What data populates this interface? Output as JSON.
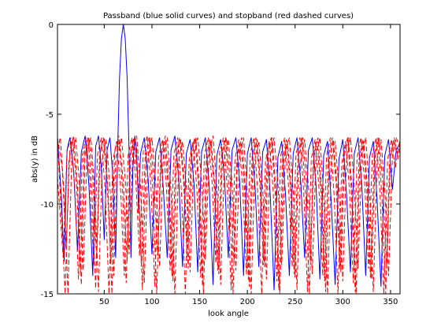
{
  "chart_data": {
    "type": "line",
    "title": "Passband (blue solid curves) and stopband (red dashed curves)",
    "xlabel": "look angle",
    "ylabel": "abs(y) in dB",
    "xlim": [
      1,
      360
    ],
    "ylim": [
      -15,
      0
    ],
    "xticks": [
      50,
      100,
      150,
      200,
      250,
      300,
      350
    ],
    "yticks": [
      0,
      -5,
      -10,
      -15
    ],
    "grid": false,
    "legend": "none",
    "series": [
      {
        "style": "solid",
        "color": "#0000ff",
        "x": [
          1,
          5,
          8,
          11,
          14,
          18,
          22,
          26,
          30,
          34,
          38,
          41,
          44,
          47,
          50,
          53,
          56,
          59,
          62,
          64,
          66,
          68,
          70,
          72,
          74,
          76,
          78,
          80,
          82,
          84,
          86,
          88,
          92,
          96,
          100,
          104,
          108,
          112,
          116,
          120,
          124,
          128,
          132,
          136,
          140,
          144,
          148,
          152,
          156,
          160,
          164,
          168,
          172,
          176,
          180,
          184,
          188,
          192,
          196,
          200,
          204,
          208,
          212,
          216,
          220,
          224,
          228,
          232,
          236,
          240,
          244,
          248,
          252,
          256,
          260,
          264,
          268,
          272,
          276,
          280,
          284,
          288,
          292,
          296,
          300,
          304,
          308,
          312,
          316,
          320,
          324,
          328,
          332,
          336,
          340,
          344,
          348,
          352,
          356,
          360
        ],
        "y": [
          -6.3,
          -9.5,
          -13.2,
          -7.0,
          -6.3,
          -8.2,
          -12.6,
          -7.1,
          -6.2,
          -9.0,
          -14.0,
          -6.8,
          -6.2,
          -8.0,
          -12.0,
          -7.0,
          -6.3,
          -8.5,
          -13.0,
          -7.0,
          -3.0,
          -0.8,
          0.0,
          -0.8,
          -3.0,
          -7.0,
          -13.0,
          -8.0,
          -6.2,
          -7.0,
          -10.5,
          -7.2,
          -6.3,
          -8.6,
          -12.8,
          -7.1,
          -6.3,
          -9.2,
          -13.0,
          -7.0,
          -6.2,
          -8.5,
          -13.5,
          -7.2,
          -6.4,
          -8.8,
          -13.8,
          -7.1,
          -6.3,
          -9.0,
          -14.5,
          -7.3,
          -6.4,
          -8.5,
          -13.0,
          -7.0,
          -6.3,
          -8.8,
          -14.0,
          -7.2,
          -6.3,
          -9.0,
          -13.5,
          -7.1,
          -6.4,
          -9.5,
          -14.8,
          -7.4,
          -6.5,
          -9.5,
          -14.0,
          -7.2,
          -6.3,
          -8.8,
          -13.0,
          -7.0,
          -6.3,
          -9.0,
          -14.2,
          -7.3,
          -6.5,
          -10.0,
          -14.5,
          -7.5,
          -6.4,
          -9.5,
          -13.8,
          -7.2,
          -6.3,
          -9.0,
          -14.0,
          -7.4,
          -6.5,
          -9.8,
          -14.6,
          -7.3,
          -6.4,
          -9.2,
          -7.0,
          -6.6
        ]
      },
      {
        "style": "dashed",
        "color": "#ff0000",
        "x": [
          1,
          6,
          10,
          14,
          18,
          22,
          26,
          30,
          34,
          38,
          42,
          46,
          50,
          54,
          58,
          62,
          66,
          70,
          74,
          78,
          82,
          86,
          90,
          94,
          98,
          102,
          106,
          110,
          114,
          118,
          122,
          126,
          130,
          134,
          138,
          142,
          146,
          150,
          154,
          158,
          162,
          166,
          170,
          174,
          178,
          182,
          186,
          190,
          194,
          198,
          202,
          206,
          210,
          214,
          218,
          222,
          226,
          230,
          234,
          238,
          242,
          246,
          250,
          254,
          258,
          262,
          266,
          270,
          274,
          278,
          282,
          286,
          290,
          294,
          298,
          302,
          306,
          310,
          314,
          318,
          322,
          326,
          330,
          334,
          338,
          342,
          346,
          350,
          354,
          358,
          360
        ],
        "y": [
          -6.3,
          -8.0,
          -12.5,
          -7.0,
          -6.2,
          -9.0,
          -14.5,
          -7.2,
          -6.3,
          -8.5,
          -13.0,
          -7.0,
          -6.3,
          -9.2,
          -15.0,
          -7.5,
          -6.4,
          -8.8,
          -13.2,
          -7.1,
          -6.3,
          -9.0,
          -14.8,
          -7.3,
          -6.3,
          -8.6,
          -12.9,
          -7.1,
          -6.2,
          -9.1,
          -14.3,
          -7.4,
          -6.4,
          -8.9,
          -13.6,
          -7.2,
          -6.3,
          -9.3,
          -15.0,
          -7.5,
          -6.5,
          -9.0,
          -13.9,
          -7.2,
          -6.3,
          -8.7,
          -13.3,
          -7.1,
          -6.3,
          -9.2,
          -14.6,
          -7.4,
          -6.4,
          -8.9,
          -13.5,
          -7.2,
          -6.3,
          -9.4,
          -15.0,
          -7.6,
          -6.5,
          -9.1,
          -14.1,
          -7.3,
          -6.3,
          -8.8,
          -13.4,
          -7.1,
          -6.3,
          -9.3,
          -14.9,
          -7.5,
          -6.4,
          -9.0,
          -13.8,
          -7.2,
          -6.3,
          -9.5,
          -15.0,
          -7.6,
          -6.5,
          -9.2,
          -14.2,
          -7.3,
          -6.3,
          -8.9,
          -13.6,
          -7.2,
          -6.3,
          -7.5,
          -6.8
        ]
      },
      {
        "style": "dashed",
        "color": "#ff0000",
        "x": [
          1,
          4,
          8,
          12,
          16,
          20,
          24,
          28,
          32,
          36,
          40,
          44,
          48,
          52,
          56,
          60,
          64,
          68,
          72,
          76,
          80,
          84,
          88,
          92,
          96,
          100,
          104,
          108,
          112,
          116,
          120,
          124,
          128,
          132,
          136,
          140,
          144,
          148,
          152,
          156,
          160,
          164,
          168,
          172,
          176,
          180,
          184,
          188,
          192,
          196,
          200,
          204,
          208,
          212,
          216,
          220,
          224,
          228,
          232,
          236,
          240,
          244,
          248,
          252,
          256,
          260,
          264,
          268,
          272,
          276,
          280,
          284,
          288,
          292,
          296,
          300,
          304,
          308,
          312,
          316,
          320,
          324,
          328,
          332,
          336,
          340,
          344,
          348,
          352,
          356,
          360
        ],
        "y": [
          -7.0,
          -6.3,
          -9.5,
          -15.0,
          -7.4,
          -6.3,
          -8.8,
          -13.7,
          -7.2,
          -6.3,
          -9.2,
          -14.9,
          -7.5,
          -6.4,
          -9.0,
          -14.0,
          -7.3,
          -6.3,
          -8.6,
          -12.8,
          -7.0,
          -6.2,
          -9.0,
          -14.4,
          -7.3,
          -6.3,
          -8.8,
          -13.5,
          -7.2,
          -6.3,
          -9.3,
          -15.0,
          -7.6,
          -6.5,
          -9.0,
          -13.8,
          -7.2,
          -6.3,
          -8.7,
          -13.1,
          -7.1,
          -6.2,
          -9.1,
          -14.5,
          -7.4,
          -6.4,
          -8.9,
          -13.7,
          -7.2,
          -6.3,
          -9.4,
          -15.0,
          -7.5,
          -6.5,
          -9.1,
          -14.2,
          -7.3,
          -6.3,
          -8.8,
          -13.4,
          -7.1,
          -6.3,
          -9.2,
          -14.8,
          -7.5,
          -6.4,
          -9.0,
          -13.9,
          -7.2,
          -6.3,
          -9.5,
          -15.0,
          -7.6,
          -6.5,
          -9.2,
          -14.3,
          -7.3,
          -6.3,
          -8.9,
          -13.6,
          -7.2,
          -6.3,
          -9.3,
          -14.9,
          -7.5,
          -6.4,
          -9.1,
          -14.0,
          -7.3,
          -6.3,
          -6.9
        ]
      },
      {
        "style": "dashed",
        "color": "#ff0000",
        "x": [
          1,
          7,
          11,
          15,
          19,
          23,
          27,
          31,
          35,
          39,
          43,
          47,
          51,
          55,
          59,
          63,
          67,
          71,
          75,
          79,
          83,
          87,
          91,
          95,
          99,
          103,
          107,
          111,
          115,
          119,
          123,
          127,
          131,
          135,
          139,
          143,
          147,
          151,
          155,
          159,
          163,
          167,
          171,
          175,
          179,
          183,
          187,
          191,
          195,
          199,
          203,
          207,
          211,
          215,
          219,
          223,
          227,
          231,
          235,
          239,
          243,
          247,
          251,
          255,
          259,
          263,
          267,
          271,
          275,
          279,
          283,
          287,
          291,
          295,
          299,
          303,
          307,
          311,
          315,
          319,
          323,
          327,
          331,
          335,
          339,
          343,
          347,
          351,
          355,
          360
        ],
        "y": [
          -8.5,
          -13.0,
          -7.1,
          -6.3,
          -9.0,
          -14.2,
          -7.3,
          -6.3,
          -8.7,
          -13.4,
          -7.2,
          -6.3,
          -9.3,
          -15.0,
          -7.6,
          -6.5,
          -9.0,
          -14.0,
          -7.3,
          -6.3,
          -8.6,
          -12.9,
          -7.0,
          -6.2,
          -9.1,
          -14.6,
          -7.4,
          -6.4,
          -8.9,
          -13.7,
          -7.2,
          -6.3,
          -9.4,
          -15.0,
          -7.6,
          -6.5,
          -9.1,
          -14.1,
          -7.3,
          -6.3,
          -8.8,
          -13.3,
          -7.1,
          -6.3,
          -9.2,
          -14.8,
          -7.5,
          -6.4,
          -9.0,
          -13.9,
          -7.2,
          -6.3,
          -9.5,
          -15.0,
          -7.6,
          -6.5,
          -9.2,
          -14.3,
          -7.3,
          -6.3,
          -8.9,
          -13.5,
          -7.2,
          -6.3,
          -9.3,
          -14.9,
          -7.5,
          -6.4,
          -9.1,
          -14.0,
          -7.3,
          -6.3,
          -9.6,
          -15.0,
          -7.7,
          -6.5,
          -9.2,
          -14.4,
          -7.4,
          -6.3,
          -8.9,
          -13.6,
          -7.2,
          -6.3,
          -9.4,
          -15.0,
          -7.5,
          -6.4,
          -8.0,
          -6.4
        ]
      },
      {
        "style": "dashed",
        "color": "#ff0000",
        "x": [
          1,
          5,
          9,
          13,
          17,
          21,
          25,
          29,
          33,
          37,
          41,
          45,
          49,
          53,
          57,
          61,
          65,
          69,
          73,
          77,
          81,
          85,
          89,
          93,
          97,
          101,
          105,
          109,
          113,
          117,
          121,
          125,
          129,
          133,
          137,
          141,
          145,
          149,
          153,
          157,
          161,
          165,
          169,
          173,
          177,
          181,
          185,
          189,
          193,
          197,
          201,
          205,
          209,
          213,
          217,
          221,
          225,
          229,
          233,
          237,
          241,
          245,
          249,
          253,
          257,
          261,
          265,
          269,
          273,
          277,
          281,
          285,
          289,
          293,
          297,
          301,
          305,
          309,
          313,
          317,
          321,
          325,
          329,
          333,
          337,
          341,
          345,
          349,
          353,
          357,
          360
        ],
        "y": [
          -6.4,
          -10.5,
          -15.0,
          -7.6,
          -6.4,
          -8.9,
          -13.8,
          -7.2,
          -6.3,
          -9.2,
          -14.7,
          -7.4,
          -6.3,
          -8.8,
          -13.2,
          -7.1,
          -6.2,
          -9.0,
          -14.4,
          -7.3,
          -6.3,
          -8.7,
          -13.5,
          -7.2,
          -6.3,
          -9.3,
          -15.0,
          -7.6,
          -6.5,
          -9.0,
          -14.0,
          -7.3,
          -6.3,
          -8.6,
          -13.0,
          -7.1,
          -6.3,
          -9.1,
          -14.6,
          -7.4,
          -6.4,
          -8.9,
          -13.7,
          -7.2,
          -6.3,
          -9.4,
          -15.0,
          -7.6,
          -6.5,
          -9.1,
          -14.2,
          -7.3,
          -6.3,
          -8.8,
          -13.4,
          -7.1,
          -6.3,
          -9.2,
          -14.8,
          -7.5,
          -6.4,
          -9.0,
          -13.9,
          -7.2,
          -6.3,
          -9.5,
          -15.0,
          -7.6,
          -6.5,
          -9.2,
          -14.3,
          -7.3,
          -6.3,
          -8.9,
          -13.6,
          -7.2,
          -6.3,
          -9.3,
          -14.9,
          -7.5,
          -6.4,
          -9.1,
          -14.1,
          -7.3,
          -6.3,
          -9.6,
          -15.0,
          -7.7,
          -6.5,
          -7.2,
          -6.5
        ]
      }
    ]
  }
}
